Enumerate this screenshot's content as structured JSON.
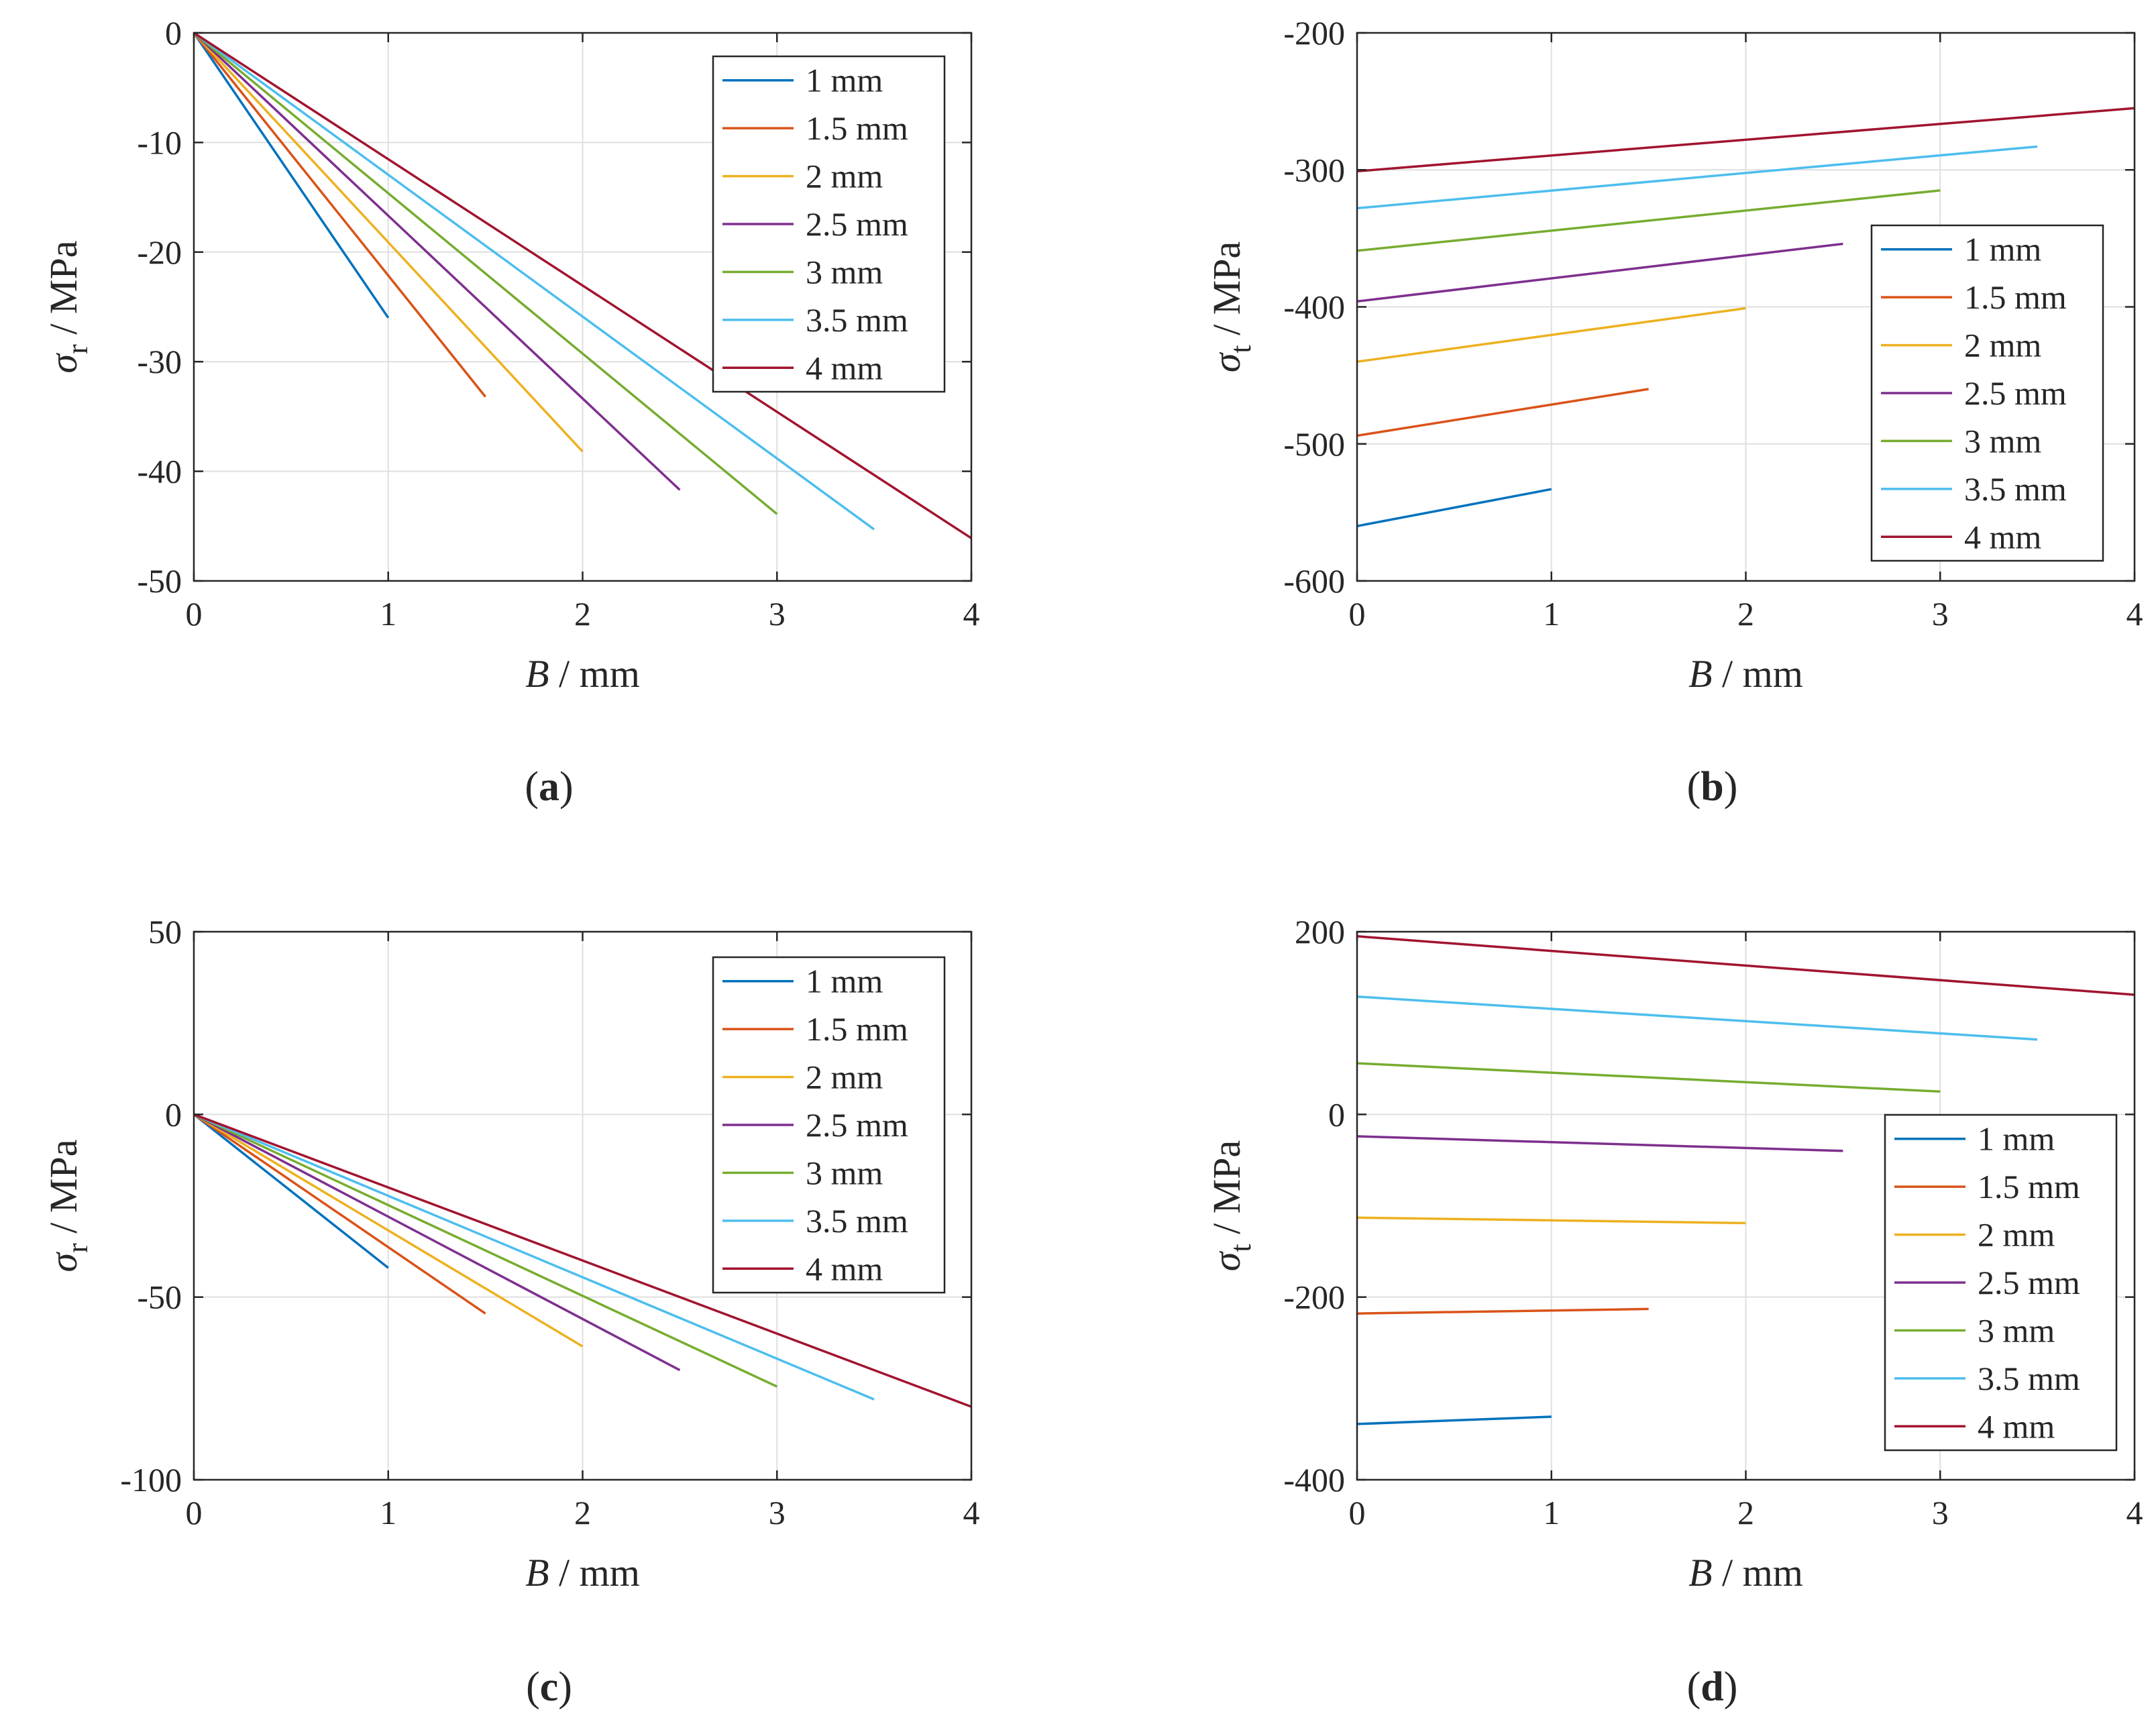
{
  "figure": {
    "colors": {
      "1 mm": "#0072bd",
      "1.5 mm": "#d95319",
      "2 mm": "#edb120",
      "2.5 mm": "#7e2f8e",
      "3 mm": "#77ac30",
      "3.5 mm": "#4dbeee",
      "4 mm": "#a2142f"
    },
    "grid": true
  },
  "chart_data": [
    {
      "type": "line",
      "panel_label": "a",
      "xlabel_italic": "B",
      "xlabel_unit": "/ mm",
      "ylabel_symbol": "σ",
      "ylabel_sub": "r",
      "ylabel_unit": "/ MPa",
      "xlim": [
        0,
        4
      ],
      "ylim": [
        -50,
        0
      ],
      "xticks": [
        0,
        1,
        2,
        3,
        4
      ],
      "yticks": [
        0,
        -10,
        -20,
        -30,
        -40,
        -50
      ],
      "legend_position": "top-right",
      "series": [
        {
          "name": "1 mm",
          "x": [
            0,
            1
          ],
          "y": [
            0,
            -26
          ]
        },
        {
          "name": "1.5 mm",
          "x": [
            0,
            1.5
          ],
          "y": [
            0,
            -33.2
          ]
        },
        {
          "name": "2 mm",
          "x": [
            0,
            2
          ],
          "y": [
            0,
            -38.2
          ]
        },
        {
          "name": "2.5 mm",
          "x": [
            0,
            2.5
          ],
          "y": [
            0,
            -41.7
          ]
        },
        {
          "name": "3 mm",
          "x": [
            0,
            3
          ],
          "y": [
            0,
            -43.9
          ]
        },
        {
          "name": "3.5 mm",
          "x": [
            0,
            3.5
          ],
          "y": [
            0,
            -45.3
          ]
        },
        {
          "name": "4 mm",
          "x": [
            0,
            4
          ],
          "y": [
            0,
            -46.1
          ]
        }
      ]
    },
    {
      "type": "line",
      "panel_label": "b",
      "xlabel_italic": "B",
      "xlabel_unit": "/ mm",
      "ylabel_symbol": "σ",
      "ylabel_sub": "t",
      "ylabel_unit": "/ MPa",
      "xlim": [
        0,
        4
      ],
      "ylim": [
        -600,
        -200
      ],
      "xticks": [
        0,
        1,
        2,
        3,
        4
      ],
      "yticks": [
        -200,
        -300,
        -400,
        -500,
        -600
      ],
      "legend_position": "bottom-right",
      "series": [
        {
          "name": "1 mm",
          "x": [
            0,
            1
          ],
          "y": [
            -560,
            -533
          ]
        },
        {
          "name": "1.5 mm",
          "x": [
            0,
            1.5
          ],
          "y": [
            -494,
            -460
          ]
        },
        {
          "name": "2 mm",
          "x": [
            0,
            2
          ],
          "y": [
            -440,
            -401
          ]
        },
        {
          "name": "2.5 mm",
          "x": [
            0,
            2.5
          ],
          "y": [
            -396,
            -354
          ]
        },
        {
          "name": "3 mm",
          "x": [
            0,
            3
          ],
          "y": [
            -359,
            -315
          ]
        },
        {
          "name": "3.5 mm",
          "x": [
            0,
            3.5
          ],
          "y": [
            -328,
            -283
          ]
        },
        {
          "name": "4 mm",
          "x": [
            0,
            4
          ],
          "y": [
            -301,
            -255
          ]
        }
      ]
    },
    {
      "type": "line",
      "panel_label": "c",
      "xlabel_italic": "B",
      "xlabel_unit": "/ mm",
      "ylabel_symbol": "σ",
      "ylabel_sub": "r",
      "ylabel_unit": "/ MPa",
      "xlim": [
        0,
        4
      ],
      "ylim": [
        -100,
        50
      ],
      "xticks": [
        0,
        1,
        2,
        3,
        4
      ],
      "yticks": [
        50,
        0,
        -50,
        -100
      ],
      "legend_position": "top-right",
      "series": [
        {
          "name": "1 mm",
          "x": [
            0,
            1
          ],
          "y": [
            0,
            -42
          ]
        },
        {
          "name": "1.5 mm",
          "x": [
            0,
            1.5
          ],
          "y": [
            0,
            -54.5
          ]
        },
        {
          "name": "2 mm",
          "x": [
            0,
            2
          ],
          "y": [
            0,
            -63.5
          ]
        },
        {
          "name": "2.5 mm",
          "x": [
            0,
            2.5
          ],
          "y": [
            0,
            -70
          ]
        },
        {
          "name": "3 mm",
          "x": [
            0,
            3
          ],
          "y": [
            0,
            -74.5
          ]
        },
        {
          "name": "3.5 mm",
          "x": [
            0,
            3.5
          ],
          "y": [
            0,
            -78
          ]
        },
        {
          "name": "4 mm",
          "x": [
            0,
            4
          ],
          "y": [
            0,
            -80
          ]
        }
      ]
    },
    {
      "type": "line",
      "panel_label": "d",
      "xlabel_italic": "B",
      "xlabel_unit": "/ mm",
      "ylabel_symbol": "σ",
      "ylabel_sub": "t",
      "ylabel_unit": "/ MPa",
      "xlim": [
        0,
        4
      ],
      "ylim": [
        -400,
        200
      ],
      "xticks": [
        0,
        1,
        2,
        3,
        4
      ],
      "yticks": [
        200,
        0,
        -200,
        -400
      ],
      "legend_position": "bottom-right",
      "series": [
        {
          "name": "1 mm",
          "x": [
            0,
            1
          ],
          "y": [
            -339,
            -331
          ]
        },
        {
          "name": "1.5 mm",
          "x": [
            0,
            1.5
          ],
          "y": [
            -218,
            -213
          ]
        },
        {
          "name": "2 mm",
          "x": [
            0,
            2
          ],
          "y": [
            -113,
            -119
          ]
        },
        {
          "name": "2.5 mm",
          "x": [
            0,
            2.5
          ],
          "y": [
            -24,
            -40
          ]
        },
        {
          "name": "3 mm",
          "x": [
            0,
            3
          ],
          "y": [
            56,
            25
          ]
        },
        {
          "name": "3.5 mm",
          "x": [
            0,
            3.5
          ],
          "y": [
            129,
            82
          ]
        },
        {
          "name": "4 mm",
          "x": [
            0,
            4
          ],
          "y": [
            195,
            131
          ]
        }
      ]
    }
  ]
}
